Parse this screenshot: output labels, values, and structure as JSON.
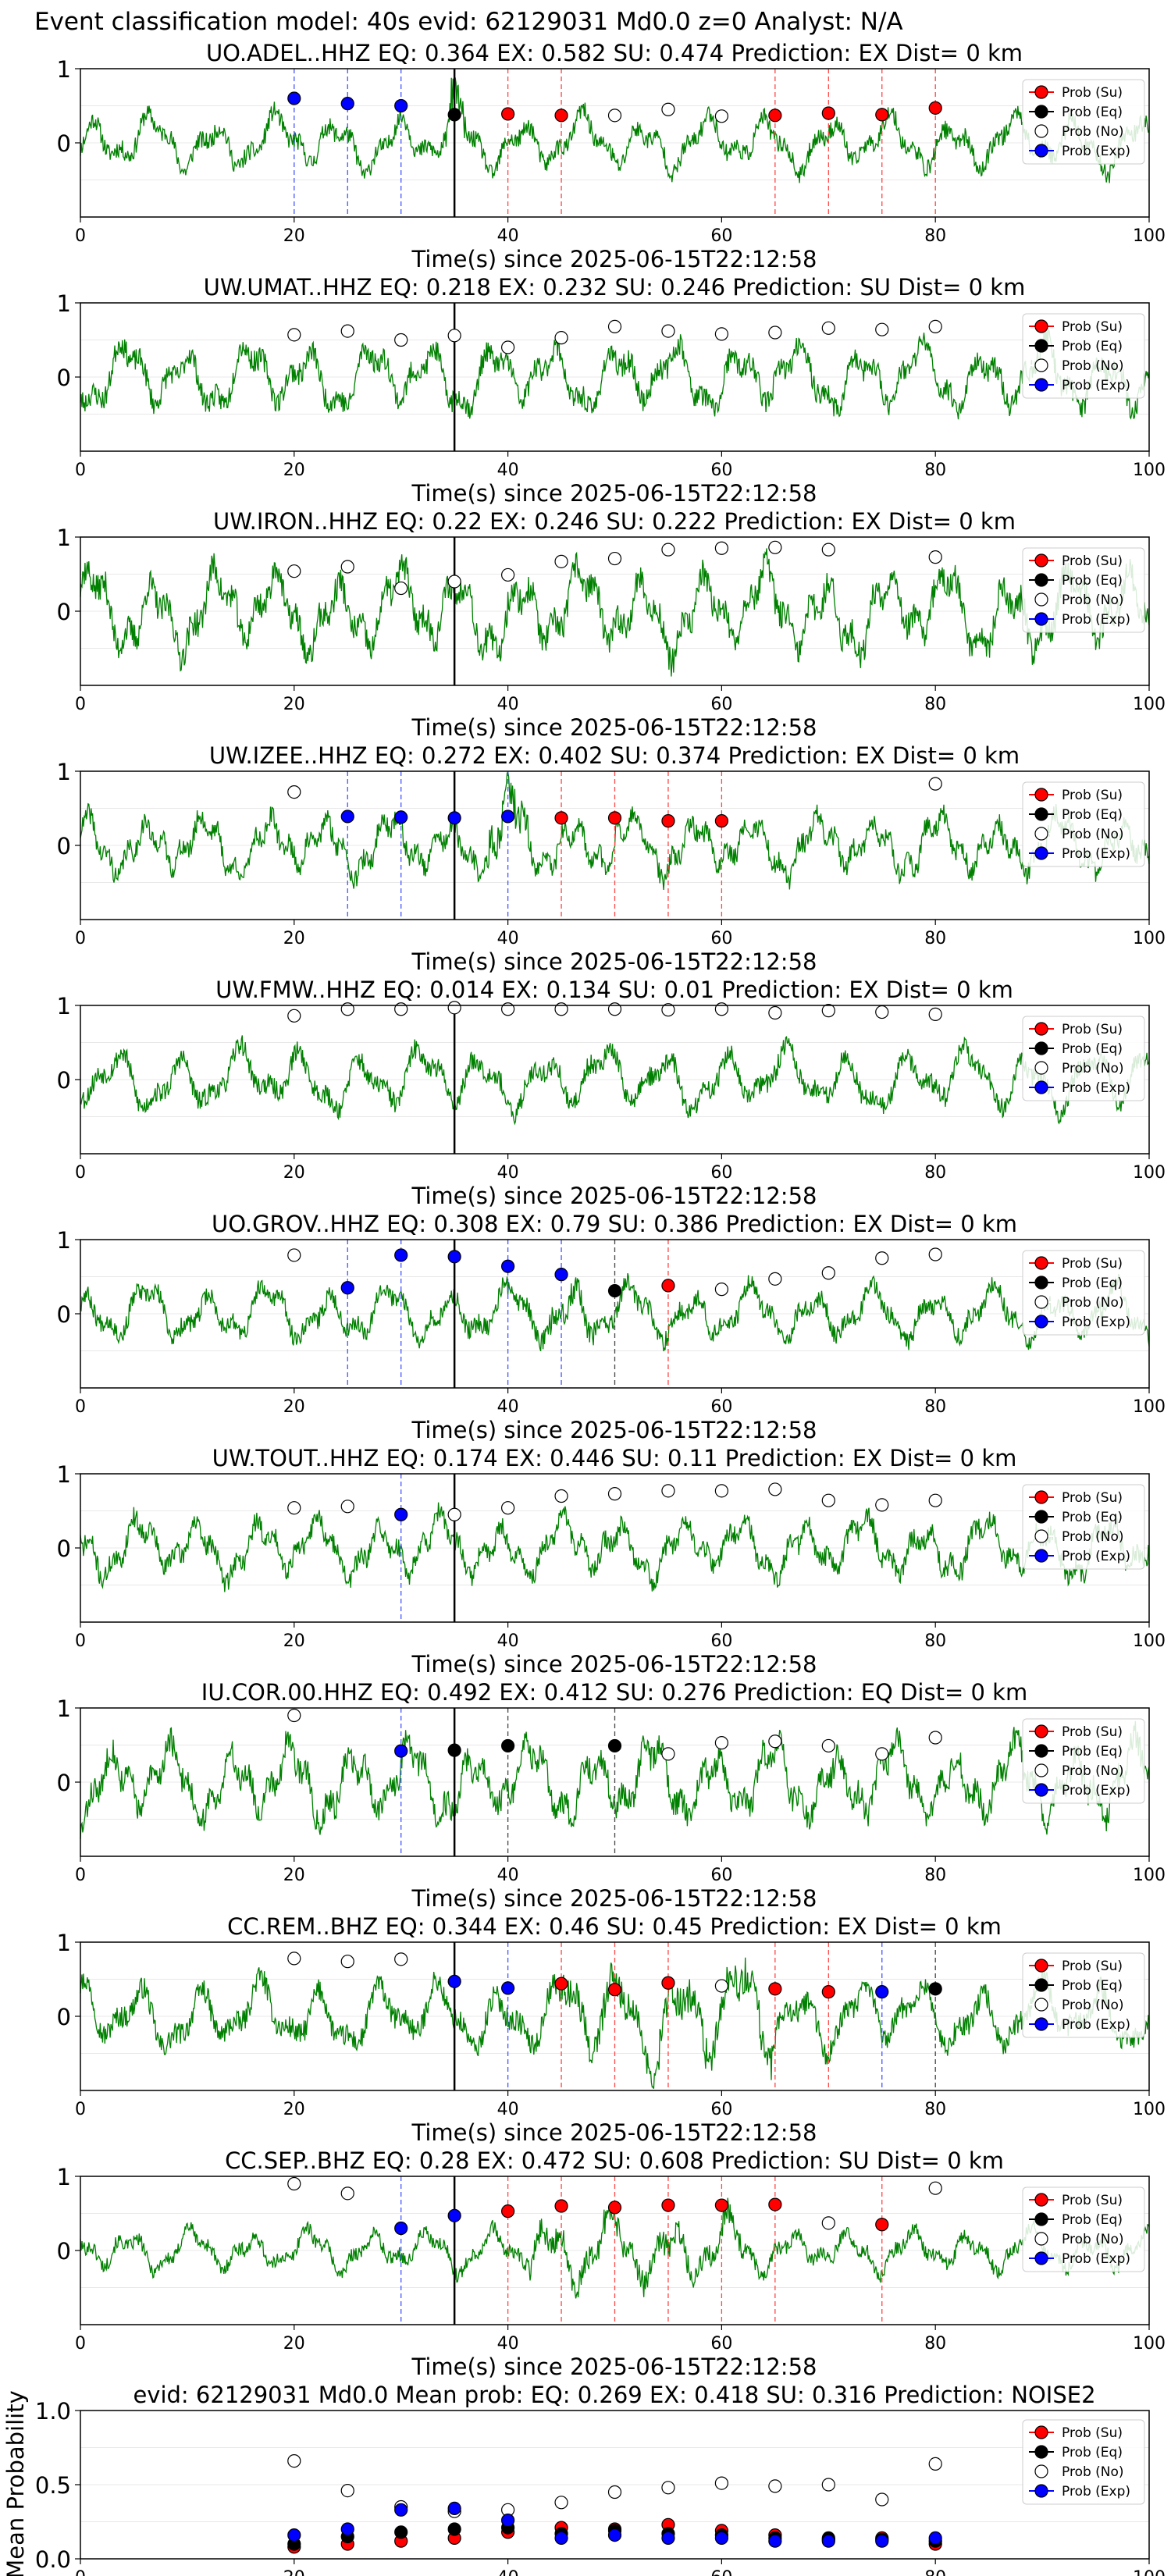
{
  "suptitle": "Event classification model: 40s evid: 62129031 Md0.0 z=0 Analyst: N/A",
  "legend": [
    "Prob (Su)",
    "Prob (Eq)",
    "Prob (No)",
    "Prob (Exp)"
  ],
  "colors": {
    "su": "#ff0000",
    "eq": "#000000",
    "no": "#ffffff",
    "exp": "#0000ff",
    "trace": "#008000"
  },
  "xlabel": "Time(s) since 2025-06-15T22:12:58",
  "xticks": [
    "0",
    "20",
    "40",
    "60",
    "80",
    "100"
  ],
  "yticks": [
    "1",
    "0"
  ],
  "mean_yticks": [
    "0.0",
    "0.5",
    "1.0"
  ],
  "mean_ylabel": "Mean Probability",
  "chart_data": [
    {
      "type": "scatter",
      "title": "UO.ADEL..HHZ   EQ: 0.364  EX: 0.582  SU: 0.474   Prediction: EX    Dist= 0 km",
      "xlim": [
        0,
        100
      ],
      "ylim": [
        -1,
        1
      ],
      "vline": 35,
      "amp": 0.45,
      "seed": 11,
      "burst": [
        34,
        36,
        1.6
      ],
      "points": [
        [
          20,
          0.6,
          "exp"
        ],
        [
          25,
          0.53,
          "exp"
        ],
        [
          30,
          0.5,
          "exp"
        ],
        [
          35,
          0.38,
          "eq"
        ],
        [
          40,
          0.39,
          "su"
        ],
        [
          45,
          0.37,
          "su"
        ],
        [
          50,
          0.37,
          "no"
        ],
        [
          55,
          0.45,
          "no"
        ],
        [
          60,
          0.36,
          "no"
        ],
        [
          65,
          0.37,
          "su"
        ],
        [
          70,
          0.4,
          "su"
        ],
        [
          75,
          0.38,
          "su"
        ],
        [
          80,
          0.47,
          "su"
        ]
      ]
    },
    {
      "type": "scatter",
      "title": "UW.UMAT..HHZ   EQ: 0.218  EX: 0.232  SU: 0.246   Prediction: SU    Dist= 0 km",
      "xlim": [
        0,
        100
      ],
      "ylim": [
        -1,
        1
      ],
      "vline": 35,
      "amp": 0.55,
      "seed": 23,
      "burst": null,
      "points": [
        [
          20,
          0.57,
          "no"
        ],
        [
          25,
          0.62,
          "no"
        ],
        [
          30,
          0.5,
          "no"
        ],
        [
          35,
          0.56,
          "no"
        ],
        [
          40,
          0.4,
          "no"
        ],
        [
          45,
          0.53,
          "no"
        ],
        [
          50,
          0.68,
          "no"
        ],
        [
          55,
          0.62,
          "no"
        ],
        [
          60,
          0.58,
          "no"
        ],
        [
          65,
          0.6,
          "no"
        ],
        [
          70,
          0.66,
          "no"
        ],
        [
          75,
          0.64,
          "no"
        ],
        [
          80,
          0.68,
          "no"
        ]
      ]
    },
    {
      "type": "scatter",
      "title": "UW.IRON..HHZ   EQ: 0.22  EX: 0.246  SU: 0.222   Prediction: EX    Dist= 0 km",
      "xlim": [
        0,
        100
      ],
      "ylim": [
        -1,
        1
      ],
      "vline": 35,
      "amp": 0.7,
      "seed": 37,
      "burst": null,
      "points": [
        [
          20,
          0.54,
          "no"
        ],
        [
          25,
          0.6,
          "no"
        ],
        [
          30,
          0.31,
          "no"
        ],
        [
          35,
          0.4,
          "no"
        ],
        [
          40,
          0.49,
          "no"
        ],
        [
          45,
          0.67,
          "no"
        ],
        [
          50,
          0.71,
          "no"
        ],
        [
          55,
          0.83,
          "no"
        ],
        [
          60,
          0.85,
          "no"
        ],
        [
          65,
          0.86,
          "no"
        ],
        [
          70,
          0.83,
          "no"
        ],
        [
          80,
          0.73,
          "no"
        ]
      ]
    },
    {
      "type": "scatter",
      "title": "UW.IZEE..HHZ   EQ: 0.272  EX: 0.402  SU: 0.374   Prediction: EX    Dist= 0 km",
      "xlim": [
        0,
        100
      ],
      "ylim": [
        -1,
        1
      ],
      "vline": 35,
      "amp": 0.5,
      "seed": 41,
      "burst": [
        38,
        42,
        1.5
      ],
      "points": [
        [
          20,
          0.72,
          "no"
        ],
        [
          25,
          0.39,
          "exp"
        ],
        [
          30,
          0.38,
          "exp"
        ],
        [
          35,
          0.37,
          "exp"
        ],
        [
          40,
          0.39,
          "exp"
        ],
        [
          45,
          0.37,
          "su"
        ],
        [
          50,
          0.37,
          "su"
        ],
        [
          55,
          0.33,
          "su"
        ],
        [
          60,
          0.33,
          "su"
        ],
        [
          80,
          0.83,
          "no"
        ]
      ]
    },
    {
      "type": "scatter",
      "title": "UW.FMW..HHZ   EQ: 0.014  EX: 0.134  SU: 0.01   Prediction: EX    Dist= 0 km",
      "xlim": [
        0,
        100
      ],
      "ylim": [
        -1,
        1
      ],
      "vline": 35,
      "amp": 0.5,
      "seed": 53,
      "burst": null,
      "points": [
        [
          20,
          0.86,
          "no"
        ],
        [
          25,
          0.95,
          "no"
        ],
        [
          30,
          0.95,
          "no"
        ],
        [
          35,
          0.97,
          "no"
        ],
        [
          40,
          0.95,
          "no"
        ],
        [
          45,
          0.95,
          "no"
        ],
        [
          50,
          0.95,
          "no"
        ],
        [
          55,
          0.94,
          "no"
        ],
        [
          60,
          0.95,
          "no"
        ],
        [
          65,
          0.9,
          "no"
        ],
        [
          70,
          0.93,
          "no"
        ],
        [
          75,
          0.91,
          "no"
        ],
        [
          80,
          0.88,
          "no"
        ]
      ]
    },
    {
      "type": "scatter",
      "title": "UO.GROV..HHZ   EQ: 0.308  EX: 0.79  SU: 0.386   Prediction: EX    Dist= 0 km",
      "xlim": [
        0,
        100
      ],
      "ylim": [
        -1,
        1
      ],
      "vline": 35,
      "amp": 0.45,
      "seed": 67,
      "burst": [
        44,
        48,
        1.1
      ],
      "points": [
        [
          20,
          0.79,
          "no"
        ],
        [
          25,
          0.35,
          "exp"
        ],
        [
          30,
          0.79,
          "exp"
        ],
        [
          35,
          0.77,
          "exp"
        ],
        [
          40,
          0.64,
          "exp"
        ],
        [
          45,
          0.53,
          "exp"
        ],
        [
          50,
          0.31,
          "eq"
        ],
        [
          55,
          0.38,
          "su"
        ],
        [
          60,
          0.33,
          "no"
        ],
        [
          65,
          0.47,
          "no"
        ],
        [
          70,
          0.55,
          "no"
        ],
        [
          75,
          0.75,
          "no"
        ],
        [
          80,
          0.8,
          "no"
        ]
      ]
    },
    {
      "type": "scatter",
      "title": "UW.TOUT..HHZ   EQ: 0.174  EX: 0.446  SU: 0.11   Prediction: EX    Dist= 0 km",
      "xlim": [
        0,
        100
      ],
      "ylim": [
        -1,
        1
      ],
      "vline": 35,
      "amp": 0.5,
      "seed": 71,
      "burst": null,
      "points": [
        [
          20,
          0.54,
          "no"
        ],
        [
          25,
          0.56,
          "no"
        ],
        [
          30,
          0.45,
          "exp"
        ],
        [
          35,
          0.45,
          "no"
        ],
        [
          40,
          0.54,
          "no"
        ],
        [
          45,
          0.7,
          "no"
        ],
        [
          50,
          0.73,
          "no"
        ],
        [
          55,
          0.77,
          "no"
        ],
        [
          60,
          0.77,
          "no"
        ],
        [
          65,
          0.79,
          "no"
        ],
        [
          70,
          0.64,
          "no"
        ],
        [
          75,
          0.58,
          "no"
        ],
        [
          80,
          0.64,
          "no"
        ]
      ]
    },
    {
      "type": "scatter",
      "title": "IU.COR.00.HHZ   EQ: 0.492  EX: 0.412  SU: 0.276   Prediction: EQ    Dist= 0 km",
      "xlim": [
        0,
        100
      ],
      "ylim": [
        -1,
        1
      ],
      "vline": 35,
      "amp": 0.65,
      "seed": 83,
      "burst": null,
      "points": [
        [
          20,
          0.9,
          "no"
        ],
        [
          30,
          0.42,
          "exp"
        ],
        [
          35,
          0.43,
          "eq"
        ],
        [
          40,
          0.49,
          "eq"
        ],
        [
          50,
          0.49,
          "eq"
        ],
        [
          55,
          0.38,
          "no"
        ],
        [
          60,
          0.53,
          "no"
        ],
        [
          65,
          0.55,
          "no"
        ],
        [
          70,
          0.49,
          "no"
        ],
        [
          75,
          0.38,
          "no"
        ],
        [
          80,
          0.6,
          "no"
        ]
      ]
    },
    {
      "type": "scatter",
      "title": "CC.REM..BHZ   EQ: 0.344  EX: 0.46  SU: 0.45   Prediction: EX    Dist= 0 km",
      "xlim": [
        0,
        100
      ],
      "ylim": [
        -1,
        1
      ],
      "vline": 35,
      "amp": 0.55,
      "seed": 97,
      "burst": [
        45,
        65,
        1.3
      ],
      "points": [
        [
          20,
          0.78,
          "no"
        ],
        [
          25,
          0.74,
          "no"
        ],
        [
          30,
          0.77,
          "no"
        ],
        [
          35,
          0.47,
          "exp"
        ],
        [
          40,
          0.38,
          "exp"
        ],
        [
          45,
          0.44,
          "su"
        ],
        [
          50,
          0.36,
          "su"
        ],
        [
          55,
          0.45,
          "su"
        ],
        [
          60,
          0.41,
          "no"
        ],
        [
          65,
          0.37,
          "su"
        ],
        [
          70,
          0.33,
          "su"
        ],
        [
          75,
          0.33,
          "exp"
        ],
        [
          80,
          0.37,
          "eq"
        ]
      ]
    },
    {
      "type": "scatter",
      "title": "CC.SEP..BHZ   EQ: 0.28  EX: 0.472  SU: 0.608   Prediction: SU    Dist= 0 km",
      "xlim": [
        0,
        100
      ],
      "ylim": [
        -1,
        1
      ],
      "vline": 35,
      "amp": 0.35,
      "seed": 101,
      "burst": [
        42,
        62,
        1.5
      ],
      "points": [
        [
          20,
          0.9,
          "no"
        ],
        [
          25,
          0.77,
          "no"
        ],
        [
          30,
          0.3,
          "exp"
        ],
        [
          35,
          0.47,
          "exp"
        ],
        [
          40,
          0.53,
          "su"
        ],
        [
          45,
          0.6,
          "su"
        ],
        [
          50,
          0.58,
          "su"
        ],
        [
          55,
          0.61,
          "su"
        ],
        [
          60,
          0.61,
          "su"
        ],
        [
          65,
          0.62,
          "su"
        ],
        [
          70,
          0.37,
          "no"
        ],
        [
          75,
          0.35,
          "su"
        ],
        [
          80,
          0.84,
          "no"
        ]
      ]
    },
    {
      "type": "scatter",
      "title": "evid: 62129031  Md0.0   Mean prob:   EQ: 0.269  EX: 0.418  SU: 0.316   Prediction: NOISE2",
      "xlim": [
        0,
        100
      ],
      "ylim": [
        0,
        1
      ],
      "vline": null,
      "amp": 0,
      "seed": 0,
      "burst": null,
      "series": [
        {
          "name": "Prob (Su)",
          "key": "su",
          "x": [
            20,
            25,
            30,
            35,
            40,
            45,
            50,
            55,
            60,
            65,
            70,
            75,
            80
          ],
          "y": [
            0.08,
            0.1,
            0.12,
            0.14,
            0.18,
            0.21,
            0.2,
            0.23,
            0.19,
            0.16,
            0.13,
            0.14,
            0.1
          ]
        },
        {
          "name": "Prob (Eq)",
          "key": "eq",
          "x": [
            20,
            25,
            30,
            35,
            40,
            45,
            50,
            55,
            60,
            65,
            70,
            75,
            80
          ],
          "y": [
            0.1,
            0.15,
            0.18,
            0.2,
            0.21,
            0.17,
            0.19,
            0.17,
            0.16,
            0.14,
            0.14,
            0.13,
            0.12
          ]
        },
        {
          "name": "Prob (No)",
          "key": "no",
          "x": [
            20,
            25,
            30,
            35,
            40,
            45,
            50,
            55,
            60,
            65,
            70,
            75,
            80
          ],
          "y": [
            0.66,
            0.46,
            0.35,
            0.32,
            0.33,
            0.38,
            0.45,
            0.48,
            0.51,
            0.49,
            0.5,
            0.4,
            0.64
          ]
        },
        {
          "name": "Prob (Exp)",
          "key": "exp",
          "x": [
            20,
            25,
            30,
            35,
            40,
            45,
            50,
            55,
            60,
            65,
            70,
            75,
            80
          ],
          "y": [
            0.16,
            0.2,
            0.33,
            0.34,
            0.26,
            0.14,
            0.16,
            0.14,
            0.14,
            0.12,
            0.12,
            0.12,
            0.14
          ]
        }
      ]
    }
  ]
}
